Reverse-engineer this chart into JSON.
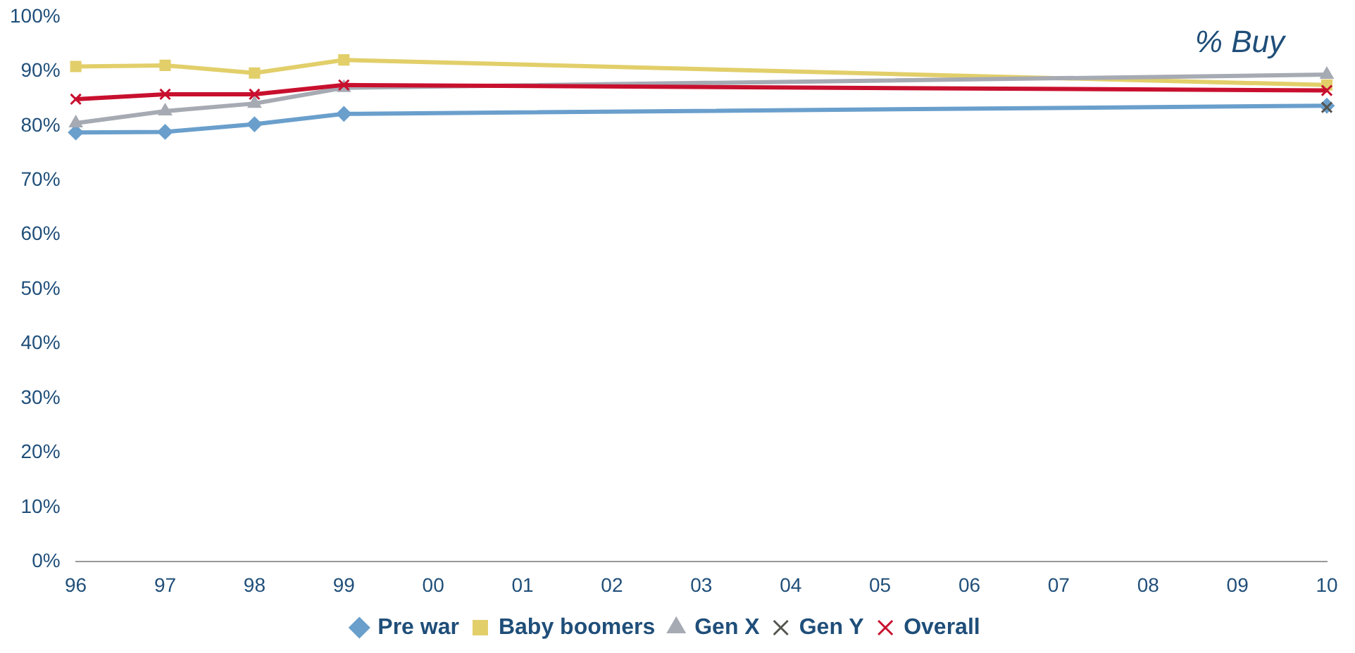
{
  "chart_data": {
    "type": "line",
    "annotations": [
      "% Buy"
    ],
    "categories": [
      "96",
      "97",
      "98",
      "99",
      "00",
      "01",
      "02",
      "03",
      "04",
      "05",
      "06",
      "07",
      "08",
      "09",
      "10"
    ],
    "series": [
      {
        "name": "Pre war",
        "color": "#6a9fcc",
        "marker": "diamond",
        "values": [
          78.8,
          78.9,
          80.3,
          82.2,
          null,
          null,
          null,
          null,
          null,
          null,
          null,
          null,
          null,
          null,
          83.7
        ]
      },
      {
        "name": "Baby boomers",
        "color": "#e2cf6a",
        "marker": "square",
        "values": [
          90.9,
          91.1,
          89.7,
          92.1,
          null,
          null,
          null,
          null,
          null,
          null,
          null,
          null,
          null,
          null,
          87.5
        ]
      },
      {
        "name": "Gen X",
        "color": "#a6aab3",
        "marker": "triangle",
        "values": [
          80.5,
          82.7,
          84.1,
          87.0,
          null,
          null,
          null,
          null,
          null,
          null,
          null,
          null,
          null,
          null,
          89.4
        ]
      },
      {
        "name": "Gen Y",
        "color": "#555550",
        "marker": "cross",
        "values": [
          null,
          null,
          null,
          null,
          null,
          null,
          null,
          null,
          null,
          null,
          null,
          null,
          null,
          null,
          83.4
        ]
      },
      {
        "name": "Overall",
        "color": "#c8102e",
        "marker": "cross",
        "values": [
          84.9,
          85.8,
          85.8,
          87.5,
          null,
          null,
          null,
          null,
          null,
          null,
          null,
          null,
          null,
          null,
          86.5
        ]
      }
    ],
    "ylim": [
      0,
      100
    ],
    "yticks": [
      {
        "value": 0,
        "label": "0%"
      },
      {
        "value": 10,
        "label": "10%"
      },
      {
        "value": 20,
        "label": "20%"
      },
      {
        "value": 30,
        "label": "30%"
      },
      {
        "value": 40,
        "label": "40%"
      },
      {
        "value": 50,
        "label": "50%"
      },
      {
        "value": 60,
        "label": "60%"
      },
      {
        "value": 70,
        "label": "70%"
      },
      {
        "value": 80,
        "label": "80%"
      },
      {
        "value": 90,
        "label": "90%"
      },
      {
        "value": 100,
        "label": "100%"
      }
    ],
    "grid": false,
    "legend": "bottom",
    "line_style": "solid"
  }
}
